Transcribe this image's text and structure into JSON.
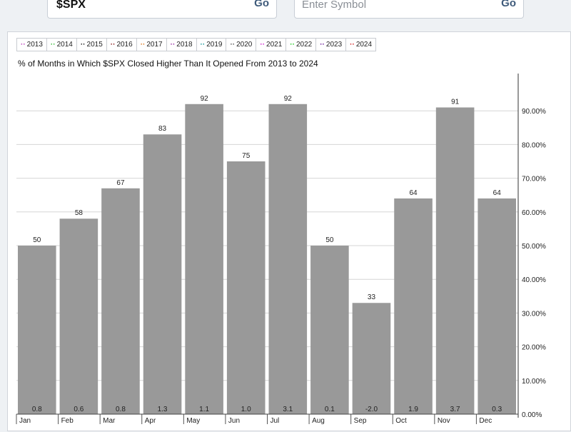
{
  "search": {
    "symbol_value": "$SPX",
    "symbol_placeholder": "Enter Symbol",
    "go_label": "Go"
  },
  "legend": [
    {
      "label": "2013",
      "color": "#c042c0"
    },
    {
      "label": "2014",
      "color": "#3bbf3b"
    },
    {
      "label": "2015",
      "color": "#222222"
    },
    {
      "label": "2016",
      "color": "#8b1a1a"
    },
    {
      "label": "2017",
      "color": "#e07b22"
    },
    {
      "label": "2018",
      "color": "#9b2fa8"
    },
    {
      "label": "2019",
      "color": "#17999a"
    },
    {
      "label": "2020",
      "color": "#555555"
    },
    {
      "label": "2021",
      "color": "#d11fd1"
    },
    {
      "label": "2022",
      "color": "#22cc22"
    },
    {
      "label": "2023",
      "color": "#6a1a9a"
    },
    {
      "label": "2024",
      "color": "#d42020"
    }
  ],
  "chart_data": {
    "type": "bar",
    "title": "% of Months in Which $SPX Closed Higher Than It Opened From 2013 to 2024",
    "categories": [
      "Jan",
      "Feb",
      "Mar",
      "Apr",
      "May",
      "Jun",
      "Jul",
      "Aug",
      "Sep",
      "Oct",
      "Nov",
      "Dec"
    ],
    "values": [
      50,
      58,
      67,
      83,
      92,
      75,
      92,
      50,
      33,
      64,
      91,
      64
    ],
    "value_labels": [
      "50",
      "58",
      "67",
      "83",
      "92",
      "75",
      "92",
      "50",
      "33",
      "64",
      "91",
      "64"
    ],
    "avg_change_labels": [
      "0.8",
      "0.6",
      "0.8",
      "1.3",
      "1.1",
      "1.0",
      "3.1",
      "0.1",
      "-2.0",
      "1.9",
      "3.7",
      "0.3"
    ],
    "ylim": [
      0,
      100
    ],
    "y_ticks": [
      "0.00%",
      "10.00%",
      "20.00%",
      "30.00%",
      "40.00%",
      "50.00%",
      "60.00%",
      "70.00%",
      "80.00%",
      "90.00%"
    ],
    "y_tick_values": [
      0,
      10,
      20,
      30,
      40,
      50,
      60,
      70,
      80,
      90
    ],
    "grid": true,
    "y_axis_position": "right",
    "bar_color": "#999999"
  }
}
